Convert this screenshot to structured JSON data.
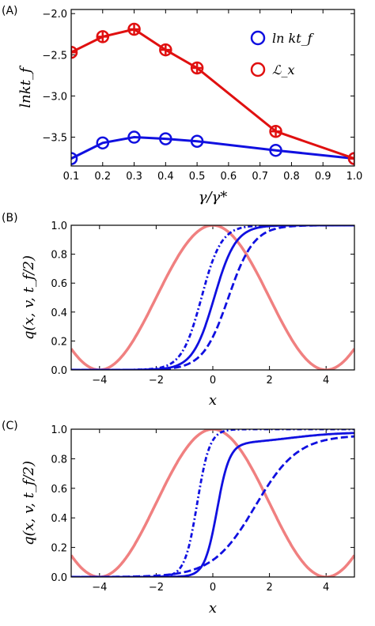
{
  "chart_data": [
    {
      "panel_label": "(A)",
      "type": "line",
      "xlabel": "γ/γ*",
      "ylabel": "lnkt_f",
      "xlim": [
        0.1,
        1.0
      ],
      "ylim": [
        -3.85,
        -1.95
      ],
      "xticks": [
        0.1,
        0.2,
        0.3,
        0.4,
        0.5,
        0.6,
        0.7,
        0.8,
        0.9,
        1.0
      ],
      "xtick_labels": [
        "0.1",
        "0.2",
        "0.3",
        "0.4",
        "0.5",
        "0.6",
        "0.7",
        "0.8",
        "0.9",
        "1.0"
      ],
      "yticks": [
        -3.5,
        -3.0,
        -2.5,
        -2.0
      ],
      "ytick_labels": [
        "−3.5",
        "−3.0",
        "−2.5",
        "−2.0"
      ],
      "legend_position": "top-right",
      "series": [
        {
          "name": "ln kt_f",
          "color": "#1010e0",
          "marker": "open-circle",
          "x": [
            0.1,
            0.2,
            0.3,
            0.4,
            0.5,
            0.75,
            1.0
          ],
          "y": [
            -3.76,
            -3.57,
            -3.5,
            -3.52,
            -3.55,
            -3.66,
            -3.76
          ]
        },
        {
          "name": "ℒ_x",
          "color": "#e01010",
          "marker": "open-circle-cross",
          "x": [
            0.1,
            0.2,
            0.3,
            0.4,
            0.5,
            0.75,
            1.0
          ],
          "y": [
            -2.47,
            -2.28,
            -2.19,
            -2.44,
            -2.66,
            -3.43,
            -3.76
          ]
        }
      ]
    },
    {
      "panel_label": "(B)",
      "type": "line",
      "xlabel": "x",
      "ylabel": "q(x, v, t_f/2)",
      "xlim": [
        -5,
        5
      ],
      "ylim": [
        0,
        1
      ],
      "xticks": [
        -4,
        -2,
        0,
        2,
        4
      ],
      "xtick_labels": [
        "−4",
        "−2",
        "0",
        "2",
        "4"
      ],
      "yticks": [
        0,
        0.2,
        0.4,
        0.6,
        0.8,
        1.0
      ],
      "ytick_labels": [
        "0.0",
        "0.2",
        "0.4",
        "0.6",
        "0.8",
        "1.0"
      ],
      "series": [
        {
          "style": "potential",
          "color": "#f08080",
          "curve": "0.5*(1+cos(pi*x/4))"
        },
        {
          "style": "dashdot",
          "color": "#1010e0",
          "curve": "sigmoid",
          "center": -0.4,
          "width": 0.35
        },
        {
          "style": "solid",
          "color": "#1010e0",
          "curve": "sigmoid",
          "center": 0.05,
          "width": 0.38
        },
        {
          "style": "dashed",
          "color": "#1010e0",
          "curve": "sigmoid",
          "center": 0.55,
          "width": 0.45
        }
      ]
    },
    {
      "panel_label": "(C)",
      "type": "line",
      "xlabel": "x",
      "ylabel": "q(x, v, t_f/2)",
      "xlim": [
        -5,
        5
      ],
      "ylim": [
        0,
        1
      ],
      "xticks": [
        -4,
        -2,
        0,
        2,
        4
      ],
      "xtick_labels": [
        "−4",
        "−2",
        "0",
        "2",
        "4"
      ],
      "yticks": [
        0,
        0.2,
        0.4,
        0.6,
        0.8,
        1.0
      ],
      "ytick_labels": [
        "0.0",
        "0.2",
        "0.4",
        "0.6",
        "0.8",
        "1.0"
      ],
      "series": [
        {
          "style": "potential",
          "color": "#f08080",
          "curve": "0.5*(1+cos(pi*x/4))"
        },
        {
          "style": "dashdot",
          "color": "#1010e0",
          "curve": "sigmoid",
          "center": -0.55,
          "width": 0.22
        },
        {
          "style": "solid",
          "color": "#1010e0",
          "curve": "two-step"
        },
        {
          "style": "dashed",
          "color": "#1010e0",
          "curve": "slow-sigmoid"
        }
      ]
    }
  ]
}
